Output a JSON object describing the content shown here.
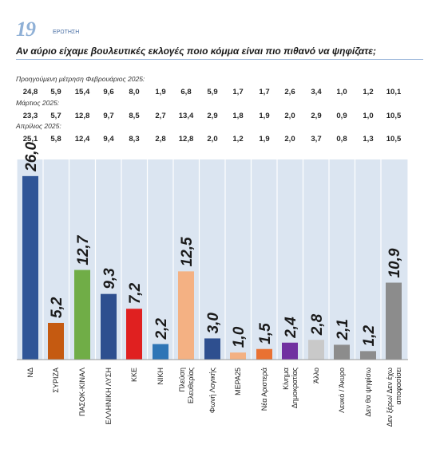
{
  "header": {
    "question_number": "19",
    "question_label": "ΕΡΩΤΗΣΗ",
    "question_text": "Αν αύριο είχαμε βουλευτικές εκλογές ποιο κόμμα είναι πιο πιθανό να ψηφίζατε;"
  },
  "previous": [
    {
      "label": "Προηγούμενη μέτρηση Φεβρουάριος 2025:",
      "values": [
        "24,8",
        "5,9",
        "15,4",
        "9,6",
        "8,0",
        "1,9",
        "6,8",
        "5,9",
        "1,7",
        "1,7",
        "2,6",
        "3,4",
        "1,0",
        "1,2",
        "10,1"
      ]
    },
    {
      "label": "Μάρτιος 2025:",
      "values": [
        "23,3",
        "5,7",
        "12,8",
        "9,7",
        "8,5",
        "2,7",
        "13,4",
        "2,9",
        "1,8",
        "1,9",
        "2,0",
        "2,9",
        "0,9",
        "1,0",
        "10,5"
      ]
    },
    {
      "label": "Απρίλιος 2025:",
      "values": [
        "25,1",
        "5,8",
        "12,4",
        "9,4",
        "8,3",
        "2,8",
        "12,8",
        "2,0",
        "1,2",
        "1,9",
        "2,0",
        "3,7",
        "0,8",
        "1,3",
        "10,5"
      ]
    }
  ],
  "chart_data": {
    "type": "bar",
    "categories": [
      [
        "ΝΔ"
      ],
      [
        "ΣΥΡΙΖΑ"
      ],
      [
        "ΠΑΣΟΚ-ΚΙΝΑΛ"
      ],
      [
        "ΕΛΛΗΝΙΚΗ ΛΥΣΗ"
      ],
      [
        "ΚΚΕ"
      ],
      [
        "ΝΙΚΗ"
      ],
      [
        "Πλεύση",
        "Ελευθερίας"
      ],
      [
        "Φωνή Λογικής"
      ],
      [
        "ΜΕΡΑ25"
      ],
      [
        "Νέα Αριστερά"
      ],
      [
        "Κίνημα",
        "Δημοκρατίας"
      ],
      [
        "Άλλο"
      ],
      [
        "Λευκό / Άκυρο"
      ],
      [
        "Δεν θα ψηφίσω"
      ],
      [
        "Δεν ξέρω/ Δεν έχω",
        "αποφασίσει"
      ]
    ],
    "values": [
      26.0,
      5.2,
      12.7,
      9.3,
      7.2,
      2.2,
      12.5,
      3.0,
      1.0,
      1.5,
      2.4,
      2.8,
      2.1,
      1.2,
      10.9
    ],
    "value_labels": [
      "26,0",
      "5,2",
      "12,7",
      "9,3",
      "7,2",
      "2,2",
      "12,5",
      "3,0",
      "1,0",
      "1,5",
      "2,4",
      "2,8",
      "2,1",
      "1,2",
      "10,9"
    ],
    "colors": [
      "#2f5597",
      "#c55a11",
      "#70ad47",
      "#2e4f8f",
      "#e02020",
      "#2e75b6",
      "#f4b183",
      "#2e4f8f",
      "#f4b183",
      "#e97132",
      "#7030a0",
      "#c9c9c9",
      "#8c8c8c",
      "#8c8c8c",
      "#8c8c8c"
    ],
    "ylim": [
      0,
      27
    ],
    "grid": false,
    "panel_color": "#dbe5f1"
  }
}
